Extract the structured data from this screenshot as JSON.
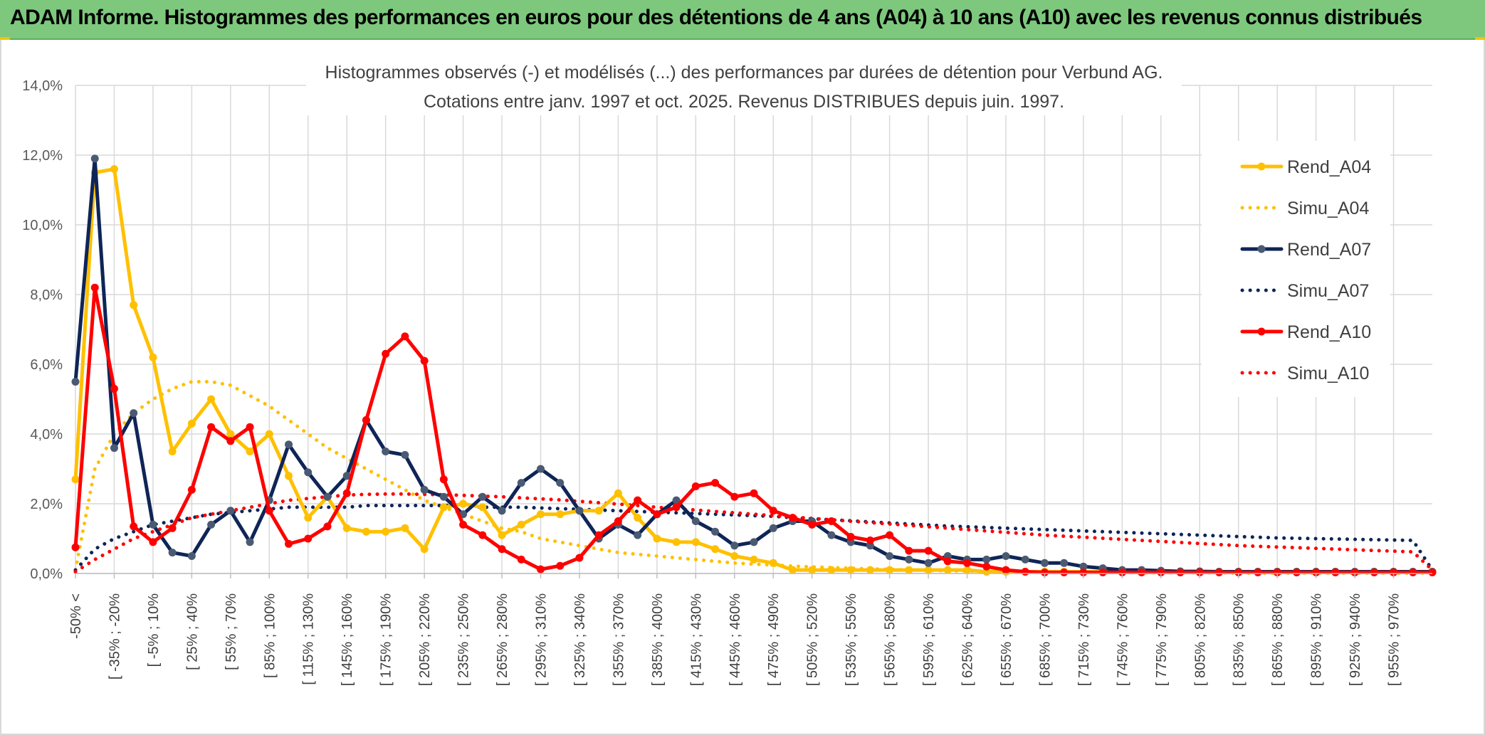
{
  "header": {
    "title": "ADAM Informe. Histogrammes des performances en euros pour des détentions de 4 ans (A04) à 10 ans (A10) avec les revenus connus distribués"
  },
  "chart_data": {
    "type": "line",
    "title": "Histogrammes observés (-) et modélisés (...) des performances par durées de détention pour Verbund AG.",
    "subtitle": "Cotations entre janv. 1997 et oct. 2025. Revenus DISTRIBUES depuis juin. 1997.",
    "ylim": [
      0,
      0.14
    ],
    "y_ticks": [
      0,
      0.02,
      0.04,
      0.06,
      0.08,
      0.1,
      0.12,
      0.14
    ],
    "y_tick_labels": [
      "0,0%",
      "2,0%",
      "4,0%",
      "6,0%",
      "8,0%",
      "10,0%",
      "12,0%",
      "14,0%"
    ],
    "grid": true,
    "legend_position": "right",
    "x_count": 71,
    "x_tick_labels": [
      "-50% <",
      "[ -35% ; -20%",
      "[ -5% ; 10%",
      "[ 25% ; 40%",
      "[ 55% ; 70%",
      "[ 85% ; 100%",
      "[ 115% ; 130%",
      "[ 145% ; 160%",
      "[ 175% ; 190%",
      "[ 205% ; 220%",
      "[ 235% ; 250%",
      "[ 265% ; 280%",
      "[ 295% ; 310%",
      "[ 325% ; 340%",
      "[ 355% ; 370%",
      "[ 385% ; 400%",
      "[ 415% ; 430%",
      "[ 445% ; 460%",
      "[ 475% ; 490%",
      "[ 505% ; 520%",
      "[ 535% ; 550%",
      "[ 565% ; 580%",
      "[ 595% ; 610%",
      "[ 625% ; 640%",
      "[ 655% ; 670%",
      "[ 685% ; 700%",
      "[ 715% ; 730%",
      "[ 745% ; 760%",
      "[ 775% ; 790%",
      "[ 805% ; 820%",
      "[ 835% ; 850%",
      "[ 865% ; 880%",
      "[ 895% ; 910%",
      "[ 925% ; 940%",
      "[ 955% ; 970%"
    ],
    "x_tick_positions": [
      0,
      2,
      4,
      6,
      8,
      10,
      12,
      14,
      16,
      18,
      20,
      22,
      24,
      26,
      28,
      30,
      32,
      34,
      36,
      38,
      40,
      42,
      44,
      46,
      48,
      50,
      52,
      54,
      56,
      58,
      60,
      62,
      64,
      66,
      68
    ],
    "series": [
      {
        "name": "Rend_A04",
        "style": "solid",
        "color": "#FFC000",
        "marker": "#FFC000",
        "values": [
          0.027,
          0.115,
          0.116,
          0.077,
          0.062,
          0.035,
          0.043,
          0.05,
          0.04,
          0.035,
          0.04,
          0.028,
          0.016,
          0.022,
          0.013,
          0.012,
          0.012,
          0.013,
          0.007,
          0.019,
          0.02,
          0.019,
          0.011,
          0.014,
          0.017,
          0.017,
          0.018,
          0.018,
          0.023,
          0.016,
          0.01,
          0.009,
          0.009,
          0.007,
          0.005,
          0.004,
          0.003,
          0.001,
          0.001,
          0.001,
          0.001,
          0.001,
          0.001,
          0.001,
          0.001,
          0.001,
          0.001,
          0.0005,
          0.0005,
          0.0005,
          0.0005,
          0.0005,
          0.0005,
          0.0005,
          0.0005,
          0.0005,
          0.0005,
          0.0005,
          0.0005,
          0.0005,
          0.0005,
          0.0005,
          0.0005,
          0.0005,
          0.0005,
          0.0005,
          0.0005,
          0.0005,
          0.0005,
          0.0005,
          0.0005
        ]
      },
      {
        "name": "Simu_A04",
        "style": "dotted",
        "color": "#FFC000",
        "values": [
          0.001,
          0.03,
          0.04,
          0.046,
          0.05,
          0.053,
          0.055,
          0.055,
          0.054,
          0.051,
          0.048,
          0.044,
          0.04,
          0.036,
          0.033,
          0.03,
          0.027,
          0.024,
          0.021,
          0.019,
          0.017,
          0.015,
          0.013,
          0.012,
          0.01,
          0.009,
          0.008,
          0.007,
          0.006,
          0.0055,
          0.005,
          0.0045,
          0.004,
          0.0035,
          0.003,
          0.0027,
          0.0024,
          0.0021,
          0.0019,
          0.0017,
          0.0015,
          0.0013,
          0.0012,
          0.001,
          0.0009,
          0.0008,
          0.0007,
          0.0006,
          0.0005,
          0.0005,
          0.0004,
          0.0004,
          0.0003,
          0.0003,
          0.0003,
          0.0002,
          0.0002,
          0.0002,
          0.0002,
          0.0002,
          0.0001,
          0.0001,
          0.0001,
          0.0001,
          0.0001,
          0.0001,
          0.0001,
          0.0001,
          0.0001,
          0.0001,
          0.0001
        ]
      },
      {
        "name": "Rend_A07",
        "style": "solid",
        "color": "#0F2557",
        "marker": "#4A5A72",
        "values": [
          0.055,
          0.119,
          0.036,
          0.046,
          0.014,
          0.006,
          0.005,
          0.014,
          0.018,
          0.009,
          0.021,
          0.037,
          0.029,
          0.022,
          0.028,
          0.044,
          0.035,
          0.034,
          0.024,
          0.022,
          0.017,
          0.022,
          0.018,
          0.026,
          0.03,
          0.026,
          0.018,
          0.01,
          0.014,
          0.011,
          0.017,
          0.021,
          0.015,
          0.012,
          0.008,
          0.009,
          0.013,
          0.015,
          0.015,
          0.011,
          0.009,
          0.008,
          0.005,
          0.004,
          0.003,
          0.005,
          0.004,
          0.004,
          0.005,
          0.004,
          0.003,
          0.003,
          0.002,
          0.0015,
          0.001,
          0.001,
          0.0008,
          0.0006,
          0.0006,
          0.0005,
          0.0005,
          0.0005,
          0.0005,
          0.0005,
          0.0005,
          0.0005,
          0.0005,
          0.0005,
          0.0005,
          0.0005,
          0.0005
        ]
      },
      {
        "name": "Simu_A07",
        "style": "dotted",
        "color": "#0F2557",
        "values": [
          0.001,
          0.007,
          0.01,
          0.012,
          0.014,
          0.015,
          0.016,
          0.017,
          0.0175,
          0.018,
          0.0185,
          0.019,
          0.019,
          0.019,
          0.019,
          0.0195,
          0.0195,
          0.0195,
          0.0195,
          0.0195,
          0.0195,
          0.019,
          0.019,
          0.019,
          0.0188,
          0.0186,
          0.0184,
          0.0182,
          0.018,
          0.0178,
          0.0176,
          0.0174,
          0.0172,
          0.017,
          0.0168,
          0.0166,
          0.0164,
          0.016,
          0.0157,
          0.0154,
          0.0151,
          0.0148,
          0.0145,
          0.0142,
          0.0139,
          0.0136,
          0.0134,
          0.0132,
          0.013,
          0.0128,
          0.0126,
          0.0124,
          0.0122,
          0.012,
          0.0118,
          0.0116,
          0.0114,
          0.0112,
          0.011,
          0.0108,
          0.0106,
          0.0104,
          0.0102,
          0.0101,
          0.01,
          0.0099,
          0.0098,
          0.0097,
          0.0096,
          0.0095,
          0.001
        ]
      },
      {
        "name": "Rend_A10",
        "style": "solid",
        "color": "#FF0000",
        "marker": "#FF0000",
        "values": [
          0.0075,
          0.082,
          0.053,
          0.0135,
          0.009,
          0.013,
          0.024,
          0.042,
          0.038,
          0.042,
          0.018,
          0.0085,
          0.01,
          0.0135,
          0.023,
          0.044,
          0.063,
          0.068,
          0.061,
          0.027,
          0.014,
          0.011,
          0.007,
          0.004,
          0.0012,
          0.0022,
          0.0045,
          0.011,
          0.015,
          0.021,
          0.017,
          0.019,
          0.025,
          0.026,
          0.022,
          0.023,
          0.018,
          0.016,
          0.014,
          0.015,
          0.0105,
          0.0095,
          0.011,
          0.0065,
          0.0065,
          0.0035,
          0.003,
          0.002,
          0.001,
          0.0005,
          0.0003,
          0.0003,
          0.0003,
          0.0003,
          0.0003,
          0.0003,
          0.0003,
          0.0003,
          0.0003,
          0.0003,
          0.0003,
          0.0003,
          0.0003,
          0.0003,
          0.0003,
          0.0003,
          0.0003,
          0.0003,
          0.0003,
          0.0003,
          0.0003
        ]
      },
      {
        "name": "Simu_A10",
        "style": "dotted",
        "color": "#FF0000",
        "values": [
          0.0005,
          0.004,
          0.007,
          0.01,
          0.012,
          0.014,
          0.016,
          0.017,
          0.018,
          0.019,
          0.02,
          0.021,
          0.0215,
          0.022,
          0.0225,
          0.0227,
          0.0228,
          0.0228,
          0.0227,
          0.0226,
          0.0224,
          0.0222,
          0.022,
          0.0217,
          0.0214,
          0.0211,
          0.0207,
          0.0203,
          0.0199,
          0.0195,
          0.019,
          0.0186,
          0.0182,
          0.0178,
          0.0174,
          0.017,
          0.0166,
          0.0162,
          0.0158,
          0.0154,
          0.015,
          0.0146,
          0.0142,
          0.0138,
          0.0134,
          0.013,
          0.0126,
          0.0122,
          0.0118,
          0.0114,
          0.011,
          0.0107,
          0.0104,
          0.0101,
          0.0098,
          0.0095,
          0.0092,
          0.0089,
          0.0086,
          0.0083,
          0.008,
          0.0078,
          0.0076,
          0.0074,
          0.0072,
          0.007,
          0.0068,
          0.0066,
          0.0064,
          0.0062,
          0.001
        ]
      }
    ]
  }
}
